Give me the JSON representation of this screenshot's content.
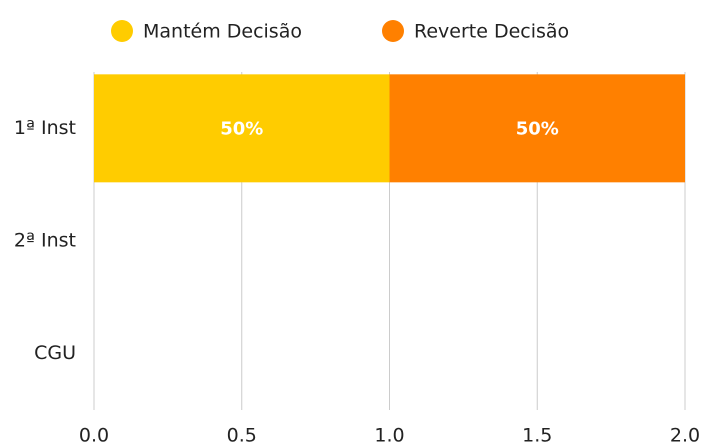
{
  "chart_data": {
    "type": "stacked-bar-horizontal",
    "categories": [
      "1ª Inst",
      "2ª Inst",
      "CGU"
    ],
    "series": [
      {
        "name": "Mantém Decisão",
        "color": "#FFCC00",
        "values": [
          1,
          0,
          0
        ],
        "value_labels": [
          "50%",
          null,
          null
        ]
      },
      {
        "name": "Reverte Decisão",
        "color": "#FF8000",
        "values": [
          1,
          0,
          0
        ],
        "value_labels": [
          "50%",
          null,
          null
        ]
      }
    ],
    "xlim": [
      0,
      2
    ],
    "xticks": [
      {
        "value": 0,
        "label": "0.0"
      },
      {
        "value": 0.5,
        "label": "0.5"
      },
      {
        "value": 1,
        "label": "1.0"
      },
      {
        "value": 1.5,
        "label": "1.5"
      },
      {
        "value": 2,
        "label": "2.0"
      }
    ],
    "grid": true,
    "legend": "top"
  }
}
